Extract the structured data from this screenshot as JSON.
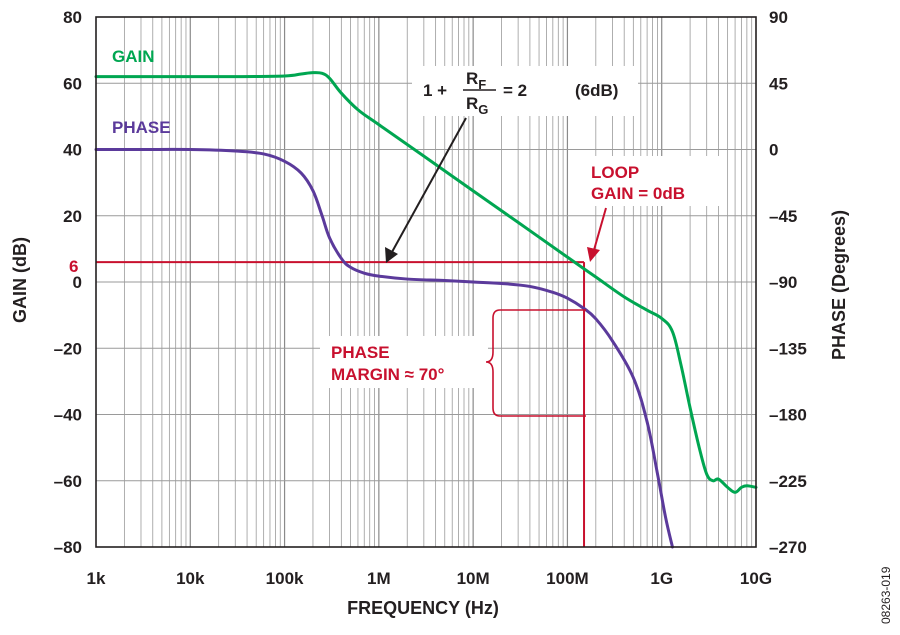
{
  "chart_data": {
    "type": "line",
    "x_scale": "log",
    "x_range_hz": [
      1000,
      10000000000
    ],
    "xlabel": "FREQUENCY (Hz)",
    "x_ticks": [
      {
        "value": 1000,
        "label": "1k"
      },
      {
        "value": 10000,
        "label": "10k"
      },
      {
        "value": 100000,
        "label": "100k"
      },
      {
        "value": 1000000,
        "label": "1M"
      },
      {
        "value": 10000000,
        "label": "10M"
      },
      {
        "value": 100000000,
        "label": "100M"
      },
      {
        "value": 1000000000,
        "label": "1G"
      },
      {
        "value": 10000000000,
        "label": "10G"
      }
    ],
    "ylabel_left": "GAIN (dB)",
    "ylim_left": [
      -80,
      80
    ],
    "y_ticks_left": [
      {
        "value": 80,
        "label": "80"
      },
      {
        "value": 60,
        "label": "60"
      },
      {
        "value": 40,
        "label": "40"
      },
      {
        "value": 20,
        "label": "20"
      },
      {
        "value": 0,
        "label": "0"
      },
      {
        "value": -20,
        "label": "–20"
      },
      {
        "value": -40,
        "label": "–40"
      },
      {
        "value": -60,
        "label": "–60"
      },
      {
        "value": -80,
        "label": "–80"
      }
    ],
    "ylabel_right": "PHASE (Degrees)",
    "ylim_right": [
      -270,
      90
    ],
    "y_ticks_right": [
      {
        "value": 90,
        "label": "90"
      },
      {
        "value": 45,
        "label": "45"
      },
      {
        "value": 0,
        "label": "0"
      },
      {
        "value": -45,
        "label": "–45"
      },
      {
        "value": -90,
        "label": "–90"
      },
      {
        "value": -135,
        "label": "–135"
      },
      {
        "value": -180,
        "label": "–180"
      },
      {
        "value": -225,
        "label": "–225"
      },
      {
        "value": -270,
        "label": "–270"
      }
    ],
    "grid": true,
    "series": [
      {
        "name": "GAIN",
        "axis": "left",
        "color": "#00a651",
        "x": [
          1000,
          3000,
          10000,
          30000,
          100000,
          150000,
          200000,
          250000,
          300000,
          400000,
          600000,
          1000000,
          3000000,
          10000000,
          30000000,
          100000000,
          200000000,
          400000000,
          700000000,
          1000000000,
          1300000000,
          1600000000,
          2000000000,
          2500000000,
          3000000000,
          3500000000,
          4000000000,
          5000000000,
          6000000000,
          7000000000,
          8000000000,
          10000000000
        ],
        "y": [
          62,
          62,
          62,
          62,
          62.2,
          62.8,
          63.2,
          63,
          61.5,
          57,
          52,
          47.5,
          38,
          27.5,
          18,
          7.5,
          1.5,
          -4.5,
          -8.5,
          -11,
          -15,
          -25,
          -38,
          -50,
          -58,
          -60,
          -59.5,
          -62,
          -63.5,
          -62,
          -61.5,
          -62
        ]
      },
      {
        "name": "PHASE",
        "axis": "right",
        "color": "#5b3a9b",
        "x": [
          1000,
          3000,
          10000,
          30000,
          60000,
          100000,
          150000,
          200000,
          250000,
          300000,
          400000,
          500000,
          700000,
          1000000,
          2000000,
          5000000,
          10000000,
          20000000,
          40000000,
          70000000,
          100000000,
          150000000,
          200000000,
          300000000,
          500000000,
          700000000,
          900000000,
          1100000000,
          1300000000
        ],
        "y": [
          0,
          0,
          0,
          -1,
          -3,
          -8,
          -16,
          -28,
          -45,
          -60,
          -74,
          -80,
          -84,
          -86,
          -88,
          -89,
          -90,
          -91,
          -93,
          -97,
          -101,
          -108,
          -115,
          -130,
          -155,
          -185,
          -220,
          -250,
          -270
        ]
      }
    ],
    "reference_lines": [
      {
        "type": "horizontal",
        "axis": "left",
        "value": 6,
        "label": "6",
        "color": "#c8102e",
        "x_range_hz": [
          1000,
          150000000
        ]
      },
      {
        "type": "vertical",
        "x_hz": 150000000,
        "color": "#c8102e",
        "y_range_left": [
          -80,
          6
        ]
      }
    ],
    "annotations": {
      "gain_label": "GAIN",
      "phase_label": "PHASE",
      "formula_prefix": "1 +",
      "formula_numerator": "R",
      "formula_numerator_sub": "F",
      "formula_denominator": "R",
      "formula_denominator_sub": "G",
      "formula_suffix": "= 2",
      "formula_db": "(6dB)",
      "loop_gain_line1": "LOOP",
      "loop_gain_line2": "GAIN = 0dB",
      "phase_margin_line1": "PHASE",
      "phase_margin_line2": "MARGIN ≈ 70°"
    },
    "figure_id": "08263-019"
  }
}
